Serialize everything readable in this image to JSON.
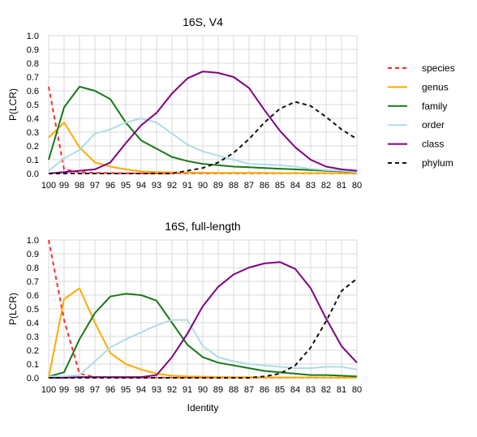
{
  "chart_data": [
    {
      "type": "line",
      "title": "16S, V4",
      "xlabel": "",
      "ylabel": "P(LCR)",
      "ylim": [
        0,
        1
      ],
      "yticks": [
        "0.0",
        "0.1",
        "0.2",
        "0.3",
        "0.4",
        "0.5",
        "0.6",
        "0.7",
        "0.8",
        "0.9",
        "1.0"
      ],
      "x": [
        100,
        99,
        98,
        97,
        96,
        95,
        94,
        93,
        92,
        91,
        90,
        89,
        88,
        87,
        86,
        85,
        84,
        83,
        82,
        81,
        80
      ],
      "xdir": "reversed",
      "grid": true,
      "series": [
        {
          "name": "species",
          "color": "#ff2a2a",
          "dash": true,
          "values": [
            0.63,
            0.03,
            0.01,
            0.005,
            0.003,
            0.002,
            0.001,
            0.001,
            0.001,
            0.001,
            0.001,
            0.001,
            0.001,
            0.001,
            0.001,
            0.001,
            0.001,
            0.001,
            0.001,
            0.001,
            0.001
          ]
        },
        {
          "name": "genus",
          "color": "#ffaa00",
          "dash": false,
          "values": [
            0.26,
            0.37,
            0.19,
            0.08,
            0.05,
            0.03,
            0.015,
            0.01,
            0.008,
            0.007,
            0.006,
            0.005,
            0.005,
            0.004,
            0.004,
            0.003,
            0.003,
            0.003,
            0.003,
            0.002,
            0.002
          ]
        },
        {
          "name": "family",
          "color": "#187818",
          "dash": false,
          "values": [
            0.1,
            0.48,
            0.63,
            0.6,
            0.54,
            0.37,
            0.24,
            0.18,
            0.12,
            0.09,
            0.07,
            0.06,
            0.05,
            0.045,
            0.04,
            0.035,
            0.03,
            0.025,
            0.02,
            0.015,
            0.01
          ]
        },
        {
          "name": "order",
          "color": "#aedde6",
          "dash": false,
          "values": [
            0.02,
            0.11,
            0.17,
            0.29,
            0.32,
            0.37,
            0.4,
            0.37,
            0.29,
            0.21,
            0.16,
            0.13,
            0.1,
            0.07,
            0.065,
            0.06,
            0.05,
            0.035,
            0.025,
            0.02,
            0.01
          ]
        },
        {
          "name": "class",
          "color": "#800080",
          "dash": false,
          "values": [
            0.0,
            0.01,
            0.02,
            0.03,
            0.08,
            0.22,
            0.35,
            0.44,
            0.58,
            0.69,
            0.74,
            0.73,
            0.7,
            0.62,
            0.46,
            0.31,
            0.19,
            0.1,
            0.05,
            0.03,
            0.02
          ]
        },
        {
          "name": "phylum",
          "color": "#111111",
          "dash": true,
          "values": [
            0.0,
            0.0,
            0.0,
            0.0,
            0.0,
            0.0,
            0.0,
            0.0,
            0.0,
            0.02,
            0.04,
            0.08,
            0.15,
            0.25,
            0.37,
            0.47,
            0.52,
            0.49,
            0.41,
            0.32,
            0.25
          ]
        }
      ]
    },
    {
      "type": "line",
      "title": "16S, full-length",
      "xlabel": "Identity",
      "ylabel": "P(LCR)",
      "ylim": [
        0,
        1
      ],
      "yticks": [
        "0.0",
        "0.1",
        "0.2",
        "0.3",
        "0.4",
        "0.5",
        "0.6",
        "0.7",
        "0.8",
        "0.9",
        "1.0"
      ],
      "x": [
        100,
        99,
        98,
        97,
        96,
        95,
        94,
        93,
        92,
        91,
        90,
        89,
        88,
        87,
        86,
        85,
        84,
        83,
        82,
        81,
        80
      ],
      "xdir": "reversed",
      "grid": true,
      "series": [
        {
          "name": "species",
          "color": "#ff2a2a",
          "dash": true,
          "values": [
            1.0,
            0.42,
            0.03,
            0.005,
            0.003,
            0.002,
            0.001,
            0.001,
            0.001,
            0.001,
            0.001,
            0.001,
            0.001,
            0.001,
            0.001,
            0.001,
            0.001,
            0.001,
            0.001,
            0.001,
            0.001
          ]
        },
        {
          "name": "genus",
          "color": "#ffaa00",
          "dash": false,
          "values": [
            0.0,
            0.57,
            0.65,
            0.4,
            0.18,
            0.1,
            0.06,
            0.03,
            0.015,
            0.01,
            0.008,
            0.006,
            0.005,
            0.004,
            0.004,
            0.003,
            0.003,
            0.003,
            0.002,
            0.002,
            0.002
          ]
        },
        {
          "name": "family",
          "color": "#187818",
          "dash": false,
          "values": [
            0.01,
            0.04,
            0.28,
            0.47,
            0.59,
            0.61,
            0.6,
            0.56,
            0.4,
            0.24,
            0.15,
            0.11,
            0.09,
            0.07,
            0.05,
            0.04,
            0.03,
            0.02,
            0.02,
            0.015,
            0.01
          ]
        },
        {
          "name": "order",
          "color": "#aedde6",
          "dash": false,
          "values": [
            0.01,
            0.01,
            0.02,
            0.12,
            0.22,
            0.28,
            0.33,
            0.38,
            0.42,
            0.42,
            0.23,
            0.15,
            0.12,
            0.1,
            0.09,
            0.08,
            0.07,
            0.07,
            0.08,
            0.08,
            0.06
          ]
        },
        {
          "name": "class",
          "color": "#800080",
          "dash": false,
          "values": [
            0.0,
            0.0,
            0.005,
            0.005,
            0.005,
            0.005,
            0.005,
            0.02,
            0.15,
            0.32,
            0.52,
            0.66,
            0.75,
            0.8,
            0.83,
            0.84,
            0.79,
            0.65,
            0.43,
            0.23,
            0.11
          ]
        },
        {
          "name": "phylum",
          "color": "#111111",
          "dash": true,
          "values": [
            0.0,
            0.0,
            0.0,
            0.0,
            0.0,
            0.0,
            0.0,
            0.0,
            0.0,
            0.0,
            0.0,
            0.0,
            0.0,
            0.0,
            0.01,
            0.03,
            0.09,
            0.22,
            0.41,
            0.63,
            0.72
          ]
        }
      ]
    }
  ],
  "legend": {
    "placement": "right",
    "items": [
      {
        "label": "species",
        "color": "#ff2a2a",
        "dash": true
      },
      {
        "label": "genus",
        "color": "#ffaa00",
        "dash": false
      },
      {
        "label": "family",
        "color": "#187818",
        "dash": false
      },
      {
        "label": "order",
        "color": "#aedde6",
        "dash": false
      },
      {
        "label": "class",
        "color": "#800080",
        "dash": false
      },
      {
        "label": "phylum",
        "color": "#111111",
        "dash": true
      }
    ]
  }
}
